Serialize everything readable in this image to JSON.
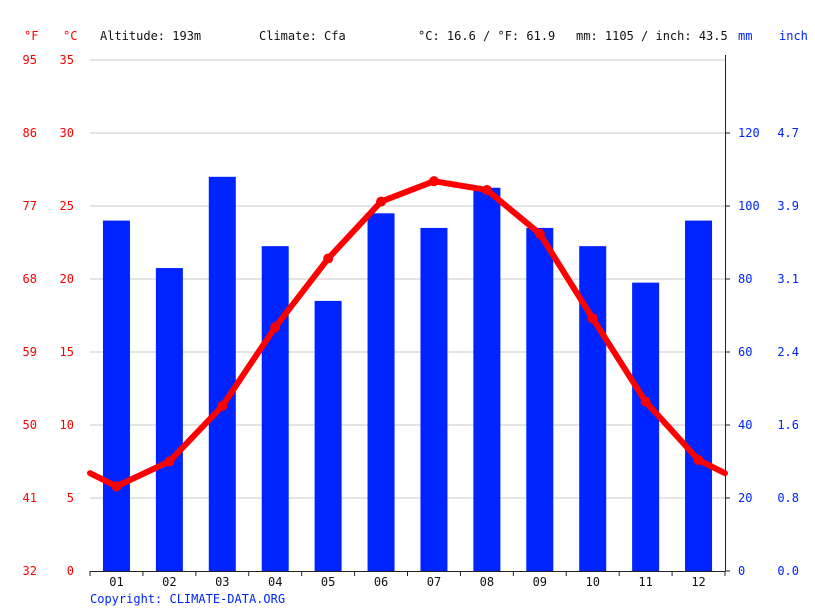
{
  "header": {
    "unit_f": "°F",
    "unit_c": "°C",
    "altitude": "Altitude: 193m",
    "climate": "Climate: Cfa",
    "temp_avg": "°C: 16.6 / °F: 61.9",
    "precip_avg": "mm: 1105 / inch: 43.5",
    "unit_mm": "mm",
    "unit_inch": "inch"
  },
  "footer": {
    "copyright": "Copyright: CLIMATE-DATA.ORG"
  },
  "colors": {
    "temperature": "#ff0000",
    "precipitation": "#0024ff",
    "grid": "#c8c8c8"
  },
  "chart_data": {
    "type": "bar",
    "categories": [
      "01",
      "02",
      "03",
      "04",
      "05",
      "06",
      "07",
      "08",
      "09",
      "10",
      "11",
      "12"
    ],
    "series": [
      {
        "type": "bar",
        "axis": "precipitation_mm",
        "values": [
          96,
          83,
          108,
          89,
          74,
          98,
          94,
          105,
          94,
          89,
          79,
          96
        ]
      },
      {
        "type": "line",
        "axis": "temperature_c",
        "values": [
          5.8,
          7.5,
          11.3,
          16.7,
          21.4,
          25.3,
          26.7,
          26.1,
          23.1,
          17.3,
          11.6,
          7.6
        ],
        "edge_values": [
          6.7,
          6.7
        ]
      }
    ],
    "axes": {
      "left_f_ticks": [
        "32",
        "41",
        "50",
        "59",
        "68",
        "77",
        "86",
        "95"
      ],
      "left_c_ticks": [
        "0",
        "5",
        "10",
        "15",
        "20",
        "25",
        "30",
        "35"
      ],
      "right_mm_ticks": [
        "0",
        "20",
        "40",
        "60",
        "80",
        "100",
        "120"
      ],
      "right_inch_ticks": [
        "0.0",
        "0.8",
        "1.6",
        "2.4",
        "3.1",
        "3.9",
        "4.7"
      ],
      "c_range": [
        0,
        35
      ],
      "mm_range": [
        0,
        140
      ]
    },
    "grid": true
  }
}
